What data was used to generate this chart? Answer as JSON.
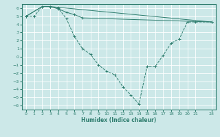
{
  "xlabel": "Humidex (Indice chaleur)",
  "xlim": [
    -0.5,
    23.5
  ],
  "ylim": [
    -6.5,
    6.5
  ],
  "xticks": [
    0,
    1,
    2,
    3,
    4,
    5,
    6,
    7,
    8,
    9,
    10,
    11,
    12,
    13,
    14,
    15,
    16,
    17,
    18,
    19,
    20,
    21,
    23
  ],
  "yticks": [
    -6,
    -5,
    -4,
    -3,
    -2,
    -1,
    0,
    1,
    2,
    3,
    4,
    5,
    6
  ],
  "color": "#2e7d6e",
  "bg_color": "#cce8e8",
  "grid_color": "#ffffff",
  "lines": [
    {
      "x": [
        0,
        1,
        2,
        3,
        4,
        5,
        6,
        7,
        8,
        9,
        10,
        11,
        12,
        13,
        14,
        15,
        16,
        17,
        18,
        19,
        20,
        21,
        23
      ],
      "y": [
        5,
        5,
        6.2,
        6.2,
        6.0,
        4.7,
        2.5,
        1.0,
        0.3,
        -1.0,
        -1.8,
        -2.2,
        -3.7,
        -4.7,
        -5.8,
        -1.2,
        -1.2,
        0.2,
        1.7,
        2.2,
        4.3,
        4.3,
        4.3
      ],
      "linestyle": "--",
      "marker": "+"
    },
    {
      "x": [
        0,
        2,
        3,
        4,
        23
      ],
      "y": [
        5,
        6.2,
        6.2,
        6.1,
        4.3
      ],
      "linestyle": "-",
      "marker": "+"
    },
    {
      "x": [
        0,
        2,
        3,
        4,
        5,
        6,
        7,
        23
      ],
      "y": [
        5,
        6.2,
        6.2,
        5.9,
        5.5,
        5.2,
        4.8,
        4.3
      ],
      "linestyle": "-",
      "marker": "+"
    }
  ]
}
